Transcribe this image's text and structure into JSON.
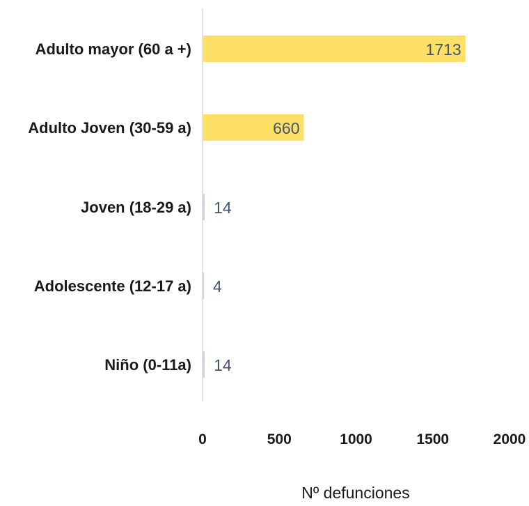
{
  "chart_data": {
    "type": "bar",
    "orientation": "horizontal",
    "categories": [
      "Adulto mayor (60 a +)",
      "Adulto Joven (30-59 a)",
      "Joven (18-29 a)",
      "Adolescente (12-17 a)",
      "Niño (0-11a)"
    ],
    "values": [
      1713,
      660,
      14,
      4,
      14
    ],
    "data_labels": [
      "1713",
      "660",
      "14",
      "4",
      "14"
    ],
    "xlabel": "Nº defunciones",
    "ylabel": "",
    "xlim": [
      0,
      2000
    ],
    "x_ticks": [
      "0",
      "500",
      "1000",
      "1500",
      "2000"
    ],
    "grid": false,
    "colors": {
      "bar": "#ffe066",
      "small_bar": "#c9d3ea",
      "axis": "#d9d9d9",
      "data_label": "#44546a"
    }
  }
}
